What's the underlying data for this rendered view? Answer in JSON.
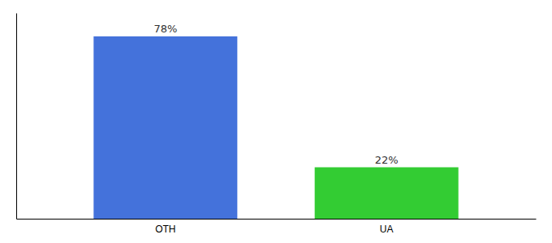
{
  "chart_data": {
    "type": "bar",
    "categories": [
      "OTH",
      "UA"
    ],
    "values": [
      78,
      22
    ],
    "value_labels": [
      "78%",
      "22%"
    ],
    "colors": [
      "#4472db",
      "#33cc33"
    ],
    "ylim": [
      0,
      88
    ],
    "data_labels": true,
    "tick_labels": "x"
  }
}
